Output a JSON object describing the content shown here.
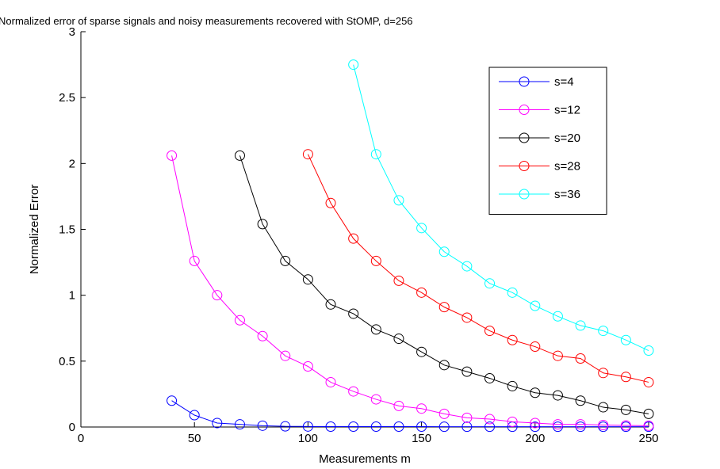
{
  "chart_data": {
    "type": "line",
    "title": "Normalized error of sparse signals and noisy measurements recovered with StOMP, d=256",
    "xlabel": "Measurements m",
    "ylabel": "Normalized Error",
    "xlim": [
      0,
      250
    ],
    "ylim": [
      0,
      3
    ],
    "xticks": [
      0,
      50,
      100,
      150,
      200,
      250
    ],
    "yticks": [
      0,
      0.5,
      1,
      1.5,
      2,
      2.5,
      3
    ],
    "xtick_labels": [
      "0",
      "50",
      "100",
      "150",
      "200",
      "250"
    ],
    "ytick_labels": [
      "0",
      "0.5",
      "1",
      "1.5",
      "2",
      "2.5",
      "3"
    ],
    "grid": false,
    "marker": "circle",
    "legend_position": "top-right",
    "series": [
      {
        "name": "s=4",
        "color": "#0000ff",
        "x": [
          40,
          50,
          60,
          70,
          80,
          90,
          100,
          110,
          120,
          130,
          140,
          150,
          160,
          170,
          180,
          190,
          200,
          210,
          220,
          230,
          240,
          250
        ],
        "y": [
          0.2,
          0.09,
          0.03,
          0.02,
          0.01,
          0.005,
          0.004,
          0.003,
          0.003,
          0.003,
          0.003,
          0.003,
          0.002,
          0.002,
          0.002,
          0.002,
          0.002,
          0.002,
          0.002,
          0.002,
          0.002,
          0.002
        ]
      },
      {
        "name": "s=12",
        "color": "#ff00ff",
        "x": [
          40,
          50,
          60,
          70,
          80,
          90,
          100,
          110,
          120,
          130,
          140,
          150,
          160,
          170,
          180,
          190,
          200,
          210,
          220,
          230,
          240,
          250
        ],
        "y": [
          2.06,
          1.26,
          1.0,
          0.81,
          0.69,
          0.54,
          0.46,
          0.34,
          0.27,
          0.21,
          0.16,
          0.14,
          0.1,
          0.07,
          0.06,
          0.04,
          0.03,
          0.02,
          0.02,
          0.015,
          0.012,
          0.01
        ]
      },
      {
        "name": "s=20",
        "color": "#000000",
        "x": [
          70,
          80,
          90,
          100,
          110,
          120,
          130,
          140,
          150,
          160,
          170,
          180,
          190,
          200,
          210,
          220,
          230,
          240,
          250
        ],
        "y": [
          2.06,
          1.54,
          1.26,
          1.12,
          0.93,
          0.86,
          0.74,
          0.67,
          0.57,
          0.47,
          0.42,
          0.37,
          0.31,
          0.26,
          0.24,
          0.2,
          0.15,
          0.13,
          0.1
        ]
      },
      {
        "name": "s=28",
        "color": "#ff0000",
        "x": [
          100,
          110,
          120,
          130,
          140,
          150,
          160,
          170,
          180,
          190,
          200,
          210,
          220,
          230,
          240,
          250
        ],
        "y": [
          2.07,
          1.7,
          1.43,
          1.26,
          1.11,
          1.02,
          0.91,
          0.83,
          0.73,
          0.66,
          0.61,
          0.54,
          0.52,
          0.41,
          0.38,
          0.34
        ]
      },
      {
        "name": "s=36",
        "color": "#00ffff",
        "x": [
          120,
          130,
          140,
          150,
          160,
          170,
          180,
          190,
          200,
          210,
          220,
          230,
          240,
          250
        ],
        "y": [
          2.75,
          2.07,
          1.72,
          1.51,
          1.33,
          1.22,
          1.09,
          1.02,
          0.92,
          0.84,
          0.77,
          0.73,
          0.66,
          0.58
        ]
      }
    ]
  }
}
